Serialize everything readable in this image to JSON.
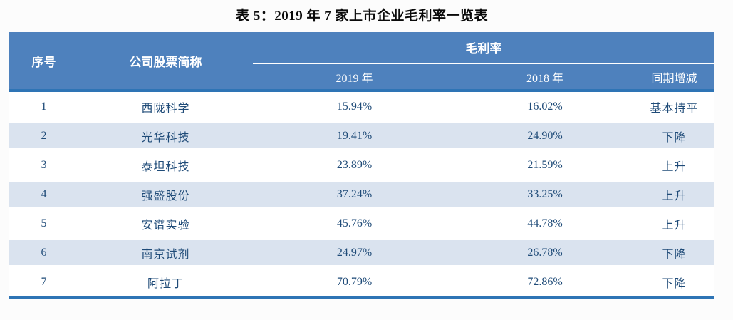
{
  "title": "表 5：2019 年 7 家上市企业毛利率一览表",
  "colors": {
    "header_bg": "#4E81BD",
    "stripe_bg": "#DAE3EF",
    "heavy_border": "#2E74B5",
    "data_text": "#1F4B78",
    "trend_up_red": "#C11D45",
    "trend_down_green": "#2EA167",
    "trend_flat_black": "#141414"
  },
  "table": {
    "header": {
      "index": "序号",
      "company": "公司股票简称",
      "margin_group": "毛利率",
      "col_2019": "2019 年",
      "col_2018": "2018 年",
      "change": "同期增减"
    },
    "rows": [
      {
        "index": "1",
        "company": "西陇科学",
        "y2019": "15.94%",
        "y2018": "16.02%",
        "change": "基本持平",
        "trend": "flat"
      },
      {
        "index": "2",
        "company": "光华科技",
        "y2019": "19.41%",
        "y2018": "24.90%",
        "change": "下降",
        "trend": "down"
      },
      {
        "index": "3",
        "company": "泰坦科技",
        "y2019": "23.89%",
        "y2018": "21.59%",
        "change": "上升",
        "trend": "up"
      },
      {
        "index": "4",
        "company": "强盛股份",
        "y2019": "37.24%",
        "y2018": "33.25%",
        "change": "上升",
        "trend": "up"
      },
      {
        "index": "5",
        "company": "安谱实验",
        "y2019": "45.76%",
        "y2018": "44.78%",
        "change": "上升",
        "trend": "up"
      },
      {
        "index": "6",
        "company": "南京试剂",
        "y2019": "24.97%",
        "y2018": "26.78%",
        "change": "下降",
        "trend": "down"
      },
      {
        "index": "7",
        "company": "阿拉丁",
        "y2019": "70.79%",
        "y2018": "72.86%",
        "change": "下降",
        "trend": "down"
      }
    ]
  }
}
